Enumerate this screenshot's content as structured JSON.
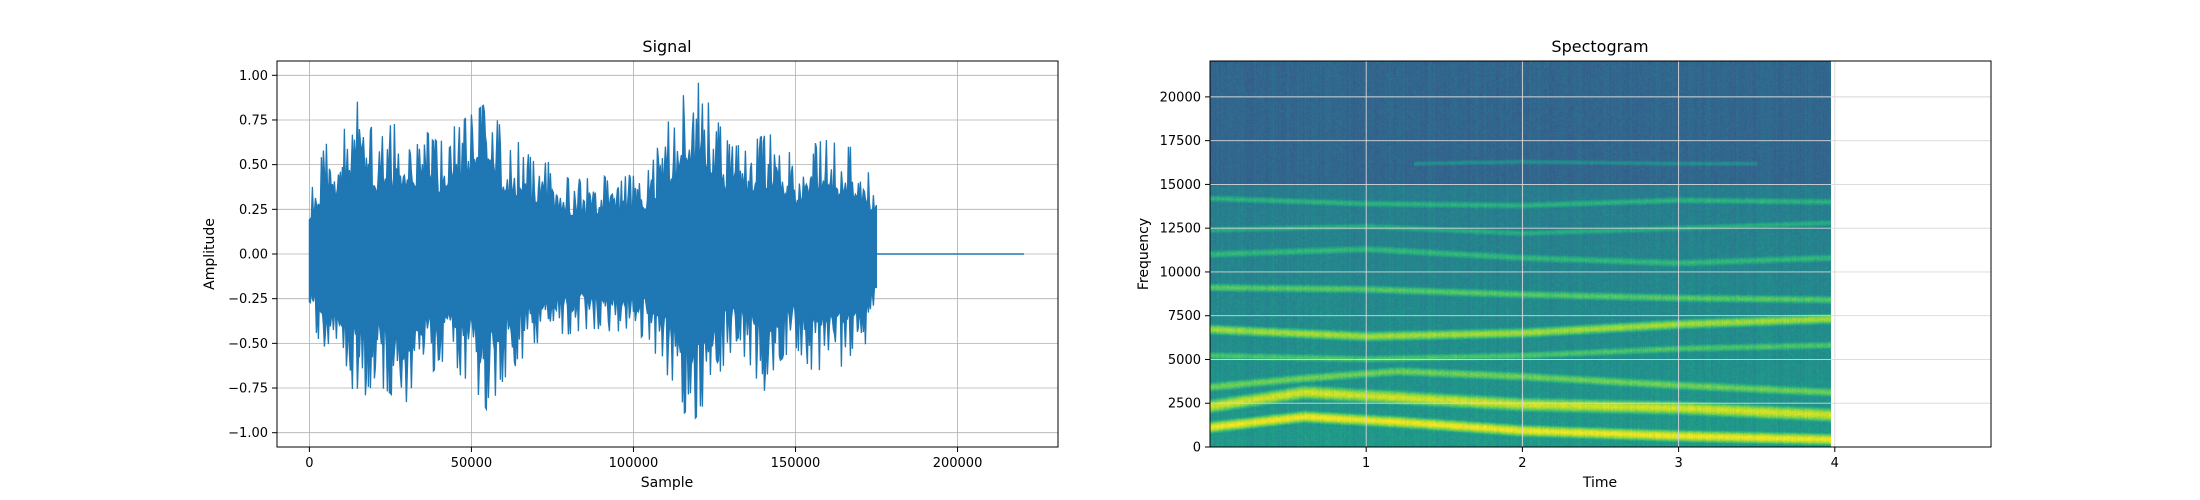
{
  "chart_data": [
    {
      "type": "line",
      "title": "Signal",
      "xlabel": "Sample",
      "ylabel": "Amplitude",
      "xlim": [
        -10000,
        231000
      ],
      "ylim": [
        -1.08,
        1.08
      ],
      "grid": true,
      "color": "#1f77b4",
      "xticks": [
        0,
        50000,
        100000,
        150000,
        200000
      ],
      "xtick_labels": [
        "0",
        "50000",
        "100000",
        "150000",
        "200000"
      ],
      "yticks": [
        -1.0,
        -0.75,
        -0.5,
        -0.25,
        0.0,
        0.25,
        0.5,
        0.75,
        1.0
      ],
      "ytick_labels": [
        "−1.00",
        "−0.75",
        "−0.50",
        "−0.25",
        "0.00",
        "0.25",
        "0.50",
        "0.75",
        "1.00"
      ],
      "signal_end_sample": 175000,
      "total_samples": 220500,
      "envelope": {
        "x": [
          0,
          5000,
          10000,
          15000,
          20000,
          25000,
          30000,
          35000,
          40000,
          45000,
          50000,
          55000,
          60000,
          65000,
          70000,
          75000,
          80000,
          85000,
          90000,
          95000,
          100000,
          105000,
          110000,
          115000,
          117000,
          120000,
          125000,
          130000,
          135000,
          140000,
          145000,
          150000,
          155000,
          160000,
          165000,
          170000,
          175000
        ],
        "upper": [
          0.32,
          0.62,
          0.67,
          0.86,
          0.68,
          0.72,
          0.75,
          0.7,
          0.62,
          0.72,
          0.78,
          0.85,
          0.68,
          0.62,
          0.5,
          0.52,
          0.42,
          0.42,
          0.45,
          0.42,
          0.45,
          0.48,
          0.72,
          0.86,
          1.0,
          0.96,
          0.78,
          0.6,
          0.62,
          0.66,
          0.68,
          0.52,
          0.62,
          0.64,
          0.6,
          0.6,
          0.36
        ],
        "lower": [
          -0.32,
          -0.6,
          -0.65,
          -0.85,
          -0.72,
          -0.78,
          -0.88,
          -0.72,
          -0.62,
          -0.66,
          -0.72,
          -0.88,
          -0.7,
          -0.6,
          -0.5,
          -0.48,
          -0.45,
          -0.42,
          -0.42,
          -0.48,
          -0.45,
          -0.48,
          -0.7,
          -0.85,
          -0.96,
          -0.9,
          -0.72,
          -0.55,
          -0.58,
          -0.78,
          -0.6,
          -0.52,
          -0.65,
          -0.68,
          -0.62,
          -0.58,
          -0.34
        ]
      }
    },
    {
      "type": "heatmap",
      "title": "Spectogram",
      "xlabel": "Time",
      "ylabel": "Frequency",
      "xlim": [
        0,
        5.0
      ],
      "ylim": [
        0,
        22050
      ],
      "data_x_extent": [
        0,
        3.97
      ],
      "grid": true,
      "colormap": "viridis",
      "xticks": [
        1,
        2,
        3,
        4
      ],
      "xtick_labels": [
        "1",
        "2",
        "3",
        "4"
      ],
      "yticks": [
        0,
        2500,
        5000,
        7500,
        10000,
        12500,
        15000,
        17500,
        20000
      ],
      "ytick_labels": [
        "0",
        "2500",
        "5000",
        "7500",
        "10000",
        "12500",
        "15000",
        "17500",
        "20000"
      ],
      "background_level": 0.33,
      "upper_band_cutoff_hz": 15000,
      "bands": [
        {
          "t": [
            0,
            0.6,
            1.2,
            2.0,
            3.0,
            3.97
          ],
          "f": [
            1100,
            1700,
            1400,
            900,
            600,
            400
          ],
          "level": 0.98,
          "width_hz": 500
        },
        {
          "t": [
            0,
            0.6,
            1.2,
            2.0,
            3.0,
            3.97
          ],
          "f": [
            2300,
            3100,
            2800,
            2400,
            2200,
            1800
          ],
          "level": 0.93,
          "width_hz": 600
        },
        {
          "t": [
            0,
            0.6,
            1.2,
            2.0,
            3.0,
            3.97
          ],
          "f": [
            3400,
            3900,
            4300,
            4000,
            3500,
            3100
          ],
          "level": 0.78,
          "width_hz": 450
        },
        {
          "t": [
            0,
            1.0,
            2.0,
            3.0,
            3.97
          ],
          "f": [
            5200,
            5000,
            5200,
            5600,
            5800
          ],
          "level": 0.72,
          "width_hz": 400
        },
        {
          "t": [
            0,
            1.0,
            2.0,
            3.0,
            3.97
          ],
          "f": [
            6700,
            6300,
            6500,
            7000,
            7300
          ],
          "level": 0.86,
          "width_hz": 450
        },
        {
          "t": [
            0,
            1.0,
            2.0,
            3.0,
            3.97
          ],
          "f": [
            9100,
            9000,
            8700,
            8500,
            8400
          ],
          "level": 0.74,
          "width_hz": 400
        },
        {
          "t": [
            0,
            1.0,
            2.0,
            3.0,
            3.97
          ],
          "f": [
            11000,
            11300,
            10800,
            10500,
            10800
          ],
          "level": 0.66,
          "width_hz": 400
        },
        {
          "t": [
            0,
            1.0,
            2.0,
            3.0,
            3.97
          ],
          "f": [
            12400,
            12600,
            12200,
            12500,
            12800
          ],
          "level": 0.62,
          "width_hz": 350
        },
        {
          "t": [
            0,
            1.0,
            2.0,
            3.0,
            3.97
          ],
          "f": [
            14200,
            13900,
            13800,
            14100,
            14000
          ],
          "level": 0.64,
          "width_hz": 350
        },
        {
          "t": [
            1.3,
            2.0,
            3.0,
            3.5
          ],
          "f": [
            16200,
            16300,
            16200,
            16200
          ],
          "level": 0.5,
          "width_hz": 250
        }
      ]
    }
  ]
}
